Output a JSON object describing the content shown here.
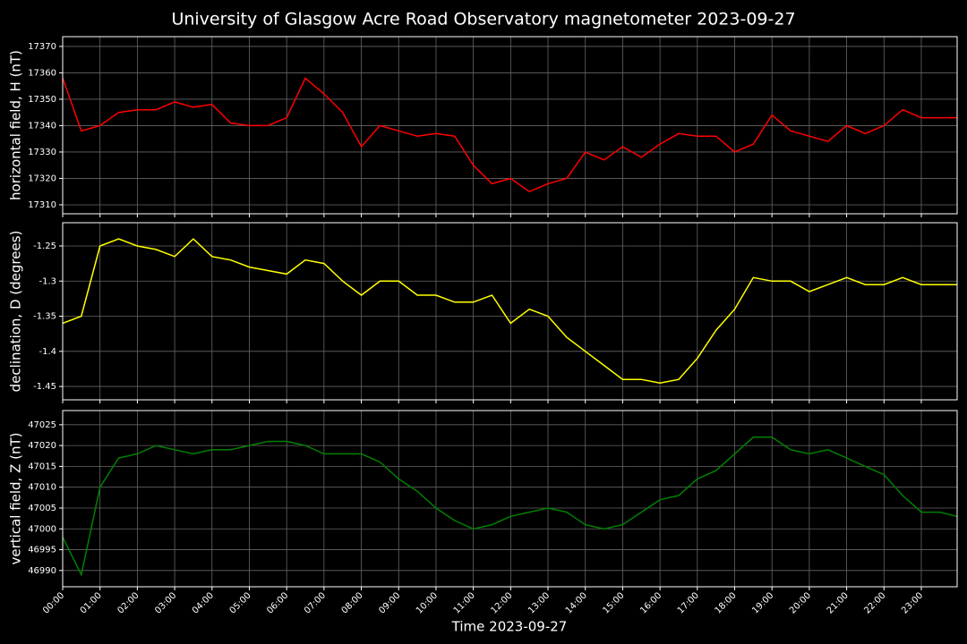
{
  "title": "University of Glasgow Acre Road Observatory magnetometer 2023-09-27",
  "x_label": "Time 2023-09-27",
  "chart_data": [
    {
      "type": "line",
      "y_label": "horizontal field, H (nT)",
      "color": "#ff0000",
      "grid": true,
      "x": [
        0,
        0.5,
        1,
        1.5,
        2,
        2.5,
        3,
        3.5,
        4,
        4.5,
        5,
        5.5,
        6,
        6.5,
        7,
        7.5,
        8,
        8.5,
        9,
        9.5,
        10,
        10.5,
        11,
        11.5,
        12,
        12.5,
        13,
        13.5,
        14,
        14.5,
        15,
        15.5,
        16,
        16.5,
        17,
        17.5,
        18,
        18.5,
        19,
        19.5,
        20,
        20.5,
        21,
        21.5,
        22,
        22.5,
        23,
        23.5,
        23.95
      ],
      "values": [
        17358,
        17338,
        17340,
        17345,
        17346,
        17346,
        17349,
        17347,
        17348,
        17341,
        17340,
        17340,
        17343,
        17358,
        17352,
        17345,
        17332,
        17340,
        17338,
        17336,
        17337,
        17336,
        17325,
        17318,
        17320,
        17315,
        17318,
        17320,
        17330,
        17327,
        17332,
        17328,
        17333,
        17337,
        17336,
        17336,
        17330,
        17333,
        17344,
        17338,
        17336,
        17334,
        17340,
        17337,
        17340,
        17346,
        17343,
        17343,
        17343
      ],
      "xlim": [
        0,
        23.96
      ],
      "ylim": [
        17306.6,
        17373.7
      ],
      "yticks": [
        17310,
        17320,
        17330,
        17340,
        17350,
        17360,
        17370
      ],
      "xticks": [
        {
          "value": 0,
          "label": "00:00"
        },
        {
          "value": 1,
          "label": "01:00"
        },
        {
          "value": 2,
          "label": "02:00"
        },
        {
          "value": 3,
          "label": "03:00"
        },
        {
          "value": 4,
          "label": "04:00"
        },
        {
          "value": 5,
          "label": "05:00"
        },
        {
          "value": 6,
          "label": "06:00"
        },
        {
          "value": 7,
          "label": "07:00"
        },
        {
          "value": 8,
          "label": "08:00"
        },
        {
          "value": 9,
          "label": "09:00"
        },
        {
          "value": 10,
          "label": "10:00"
        },
        {
          "value": 11,
          "label": "11:00"
        },
        {
          "value": 12,
          "label": "12:00"
        },
        {
          "value": 13,
          "label": "13:00"
        },
        {
          "value": 14,
          "label": "14:00"
        },
        {
          "value": 15,
          "label": "15:00"
        },
        {
          "value": 16,
          "label": "16:00"
        },
        {
          "value": 17,
          "label": "17:00"
        },
        {
          "value": 18,
          "label": "18:00"
        },
        {
          "value": 19,
          "label": "19:00"
        },
        {
          "value": 20,
          "label": "20:00"
        },
        {
          "value": 21,
          "label": "21:00"
        },
        {
          "value": 22,
          "label": "22:00"
        },
        {
          "value": 23,
          "label": "23:00"
        }
      ]
    },
    {
      "type": "line",
      "y_label": "declination, D (degrees)",
      "color": "#ffff00",
      "grid": true,
      "x": [
        0,
        0.5,
        1,
        1.5,
        2,
        2.5,
        3,
        3.5,
        4,
        4.5,
        5,
        5.5,
        6,
        6.5,
        7,
        7.5,
        8,
        8.5,
        9,
        9.5,
        10,
        10.5,
        11,
        11.5,
        12,
        12.5,
        13,
        13.5,
        14,
        14.5,
        15,
        15.5,
        16,
        16.5,
        17,
        17.5,
        18,
        18.5,
        19,
        19.5,
        20,
        20.5,
        21,
        21.5,
        22,
        22.5,
        23,
        23.5,
        23.95
      ],
      "values": [
        -1.36,
        -1.35,
        -1.25,
        -1.24,
        -1.25,
        -1.255,
        -1.265,
        -1.24,
        -1.265,
        -1.27,
        -1.28,
        -1.285,
        -1.29,
        -1.27,
        -1.275,
        -1.3,
        -1.32,
        -1.3,
        -1.3,
        -1.32,
        -1.32,
        -1.33,
        -1.33,
        -1.32,
        -1.36,
        -1.34,
        -1.35,
        -1.38,
        -1.4,
        -1.42,
        -1.44,
        -1.44,
        -1.445,
        -1.44,
        -1.41,
        -1.37,
        -1.34,
        -1.295,
        -1.3,
        -1.3,
        -1.315,
        -1.305,
        -1.295,
        -1.305,
        -1.305,
        -1.295,
        -1.305,
        -1.305,
        -1.305
      ],
      "xlim": [
        0,
        23.96
      ],
      "ylim": [
        -1.469,
        -1.2169
      ],
      "yticks": [
        -1.45,
        -1.4,
        -1.35,
        -1.3,
        -1.25
      ],
      "xticks": [
        {
          "value": 0,
          "label": "00:00"
        },
        {
          "value": 1,
          "label": "01:00"
        },
        {
          "value": 2,
          "label": "02:00"
        },
        {
          "value": 3,
          "label": "03:00"
        },
        {
          "value": 4,
          "label": "04:00"
        },
        {
          "value": 5,
          "label": "05:00"
        },
        {
          "value": 6,
          "label": "06:00"
        },
        {
          "value": 7,
          "label": "07:00"
        },
        {
          "value": 8,
          "label": "08:00"
        },
        {
          "value": 9,
          "label": "09:00"
        },
        {
          "value": 10,
          "label": "10:00"
        },
        {
          "value": 11,
          "label": "11:00"
        },
        {
          "value": 12,
          "label": "12:00"
        },
        {
          "value": 13,
          "label": "13:00"
        },
        {
          "value": 14,
          "label": "14:00"
        },
        {
          "value": 15,
          "label": "15:00"
        },
        {
          "value": 16,
          "label": "16:00"
        },
        {
          "value": 17,
          "label": "17:00"
        },
        {
          "value": 18,
          "label": "18:00"
        },
        {
          "value": 19,
          "label": "19:00"
        },
        {
          "value": 20,
          "label": "20:00"
        },
        {
          "value": 21,
          "label": "21:00"
        },
        {
          "value": 22,
          "label": "22:00"
        },
        {
          "value": 23,
          "label": "23:00"
        }
      ]
    },
    {
      "type": "line",
      "y_label": "vertical field, Z (nT)",
      "color": "#008000",
      "grid": true,
      "x": [
        0,
        0.5,
        1,
        1.5,
        2,
        2.5,
        3,
        3.5,
        4,
        4.5,
        5,
        5.5,
        6,
        6.5,
        7,
        7.5,
        8,
        8.5,
        9,
        9.5,
        10,
        10.5,
        11,
        11.5,
        12,
        12.5,
        13,
        13.5,
        14,
        14.5,
        15,
        15.5,
        16,
        16.5,
        17,
        17.5,
        18,
        18.5,
        19,
        19.5,
        20,
        20.5,
        21,
        21.5,
        22,
        22.5,
        23,
        23.5,
        23.95
      ],
      "values": [
        46998,
        46989,
        47010,
        47017,
        47018,
        47020,
        47019,
        47018,
        47019,
        47019,
        47020,
        47021,
        47021,
        47020,
        47018,
        47018,
        47018,
        47016,
        47012,
        47009,
        47005,
        47002,
        47000,
        47001,
        47003,
        47004,
        47005,
        47004,
        47001,
        47000,
        47001,
        47004,
        47007,
        47008,
        47012,
        47014,
        47018,
        47022,
        47022,
        47019,
        47018,
        47019,
        47017,
        47015,
        47013,
        47008,
        47004,
        47004,
        47003
      ],
      "xlim": [
        0,
        23.96
      ],
      "ylim": [
        46986.1,
        47028.4
      ],
      "yticks": [
        46990,
        46995,
        47000,
        47005,
        47010,
        47015,
        47020,
        47025
      ],
      "xticks": [
        {
          "value": 0,
          "label": "00:00"
        },
        {
          "value": 1,
          "label": "01:00"
        },
        {
          "value": 2,
          "label": "02:00"
        },
        {
          "value": 3,
          "label": "03:00"
        },
        {
          "value": 4,
          "label": "04:00"
        },
        {
          "value": 5,
          "label": "05:00"
        },
        {
          "value": 6,
          "label": "06:00"
        },
        {
          "value": 7,
          "label": "07:00"
        },
        {
          "value": 8,
          "label": "08:00"
        },
        {
          "value": 9,
          "label": "09:00"
        },
        {
          "value": 10,
          "label": "10:00"
        },
        {
          "value": 11,
          "label": "11:00"
        },
        {
          "value": 12,
          "label": "12:00"
        },
        {
          "value": 13,
          "label": "13:00"
        },
        {
          "value": 14,
          "label": "14:00"
        },
        {
          "value": 15,
          "label": "15:00"
        },
        {
          "value": 16,
          "label": "16:00"
        },
        {
          "value": 17,
          "label": "17:00"
        },
        {
          "value": 18,
          "label": "18:00"
        },
        {
          "value": 19,
          "label": "19:00"
        },
        {
          "value": 20,
          "label": "20:00"
        },
        {
          "value": 21,
          "label": "21:00"
        },
        {
          "value": 22,
          "label": "22:00"
        },
        {
          "value": 23,
          "label": "23:00"
        }
      ]
    }
  ]
}
